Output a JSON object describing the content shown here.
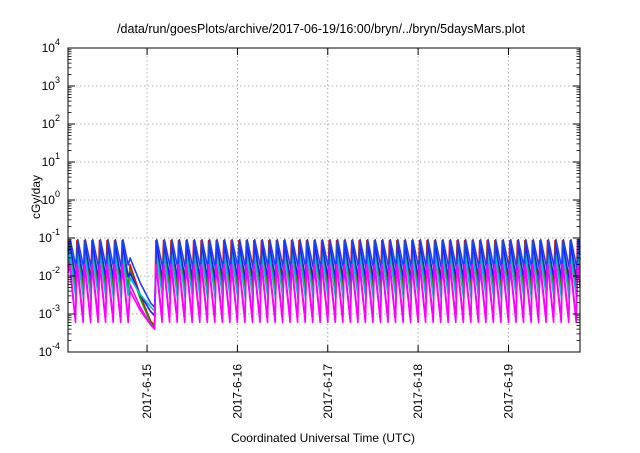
{
  "chart_data": {
    "type": "line",
    "title": "/data/run/goesPlots/archive/2017-06-19/16:00/bryn/../bryn/5daysMars.plot",
    "xlabel": "Coordinated Universal Time (UTC)",
    "ylabel": "cGy/day",
    "yscale": "log",
    "ylim": [
      0.0001,
      10000
    ],
    "xlim": [
      "2017-06-14T03:00",
      "2017-06-19T19:00"
    ],
    "grid": true,
    "legend": "none",
    "x_ticks": [
      "2017-6-15",
      "2017-6-16",
      "2017-6-17",
      "2017-6-18",
      "2017-6-19"
    ],
    "y_ticks": [
      {
        "base": "10",
        "exp": "-4"
      },
      {
        "base": "10",
        "exp": "-3"
      },
      {
        "base": "10",
        "exp": "-2"
      },
      {
        "base": "10",
        "exp": "-1"
      },
      {
        "base": "10",
        "exp": "0"
      },
      {
        "base": "10",
        "exp": "1"
      },
      {
        "base": "10",
        "exp": "2"
      },
      {
        "base": "10",
        "exp": "3"
      },
      {
        "base": "10",
        "exp": "4"
      }
    ],
    "pattern": {
      "period_hours": 2.0,
      "gap": {
        "start": "2017-06-14T19:00",
        "end": "2017-06-15T02:00"
      }
    },
    "series": [
      {
        "color": "#ff0000",
        "peak": 0.085,
        "trough": 0.0045,
        "gap_plateau": 0.02,
        "gap_end": 0.0005
      },
      {
        "color": "#00aa00",
        "peak": 0.075,
        "trough": 0.003,
        "gap_plateau": 0.015,
        "gap_end": 0.00045
      },
      {
        "color": "#1a1aff",
        "peak": 0.06,
        "trough": 0.007,
        "gap_plateau": 0.012,
        "gap_end": 0.0009
      },
      {
        "color": "#ff00ff",
        "peak": 0.03,
        "trough": 0.0007,
        "gap_plateau": 0.006,
        "gap_end": 0.0004
      },
      {
        "color": "#00c0c0",
        "peak": 0.04,
        "trough": 0.0025,
        "gap_plateau": 0.009,
        "gap_end": 0.0012
      },
      {
        "color": "#1e3cff",
        "peak": 0.09,
        "trough": 0.015,
        "gap_plateau": 0.03,
        "gap_end": 0.0015
      },
      {
        "color": "#ff00ff",
        "peak": 0.02,
        "trough": 0.0006,
        "gap_plateau": 0.004,
        "gap_end": 0.0004
      }
    ]
  }
}
